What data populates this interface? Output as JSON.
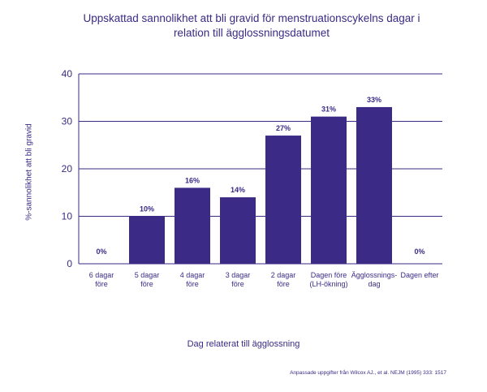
{
  "chart_data": {
    "type": "bar",
    "title_line1": "Uppskattad sannolikhet att bli gravid för menstruationscykelns dagar i",
    "title_line2": "relation till ägglossningsdatumet",
    "ylabel": "%-sannolikhet att bli gravid",
    "xlabel": "Dag relaterat till ägglossning",
    "ylim": [
      0,
      40
    ],
    "yticks": [
      "0",
      "10",
      "20",
      "30",
      "40"
    ],
    "grid": true,
    "categories": [
      [
        "6 dagar",
        "före"
      ],
      [
        "5 dagar",
        "före"
      ],
      [
        "4 dagar",
        "före"
      ],
      [
        "3 dagar",
        "före"
      ],
      [
        "2 dagar",
        "före"
      ],
      [
        "Dagen före",
        "(LH-ökning)"
      ],
      [
        "Ägglossnings-",
        "dag"
      ],
      [
        "Dagen efter"
      ]
    ],
    "values": [
      0,
      10,
      16,
      14,
      27,
      31,
      33,
      0
    ],
    "value_labels": [
      "0%",
      "10%",
      "16%",
      "14%",
      "27%",
      "31%",
      "33%",
      "0%"
    ],
    "bar_color": "#3b2a86"
  },
  "source": "Anpassade uppgifter från Wilcox AJ., et al. NEJM (1995) 333: 1517"
}
